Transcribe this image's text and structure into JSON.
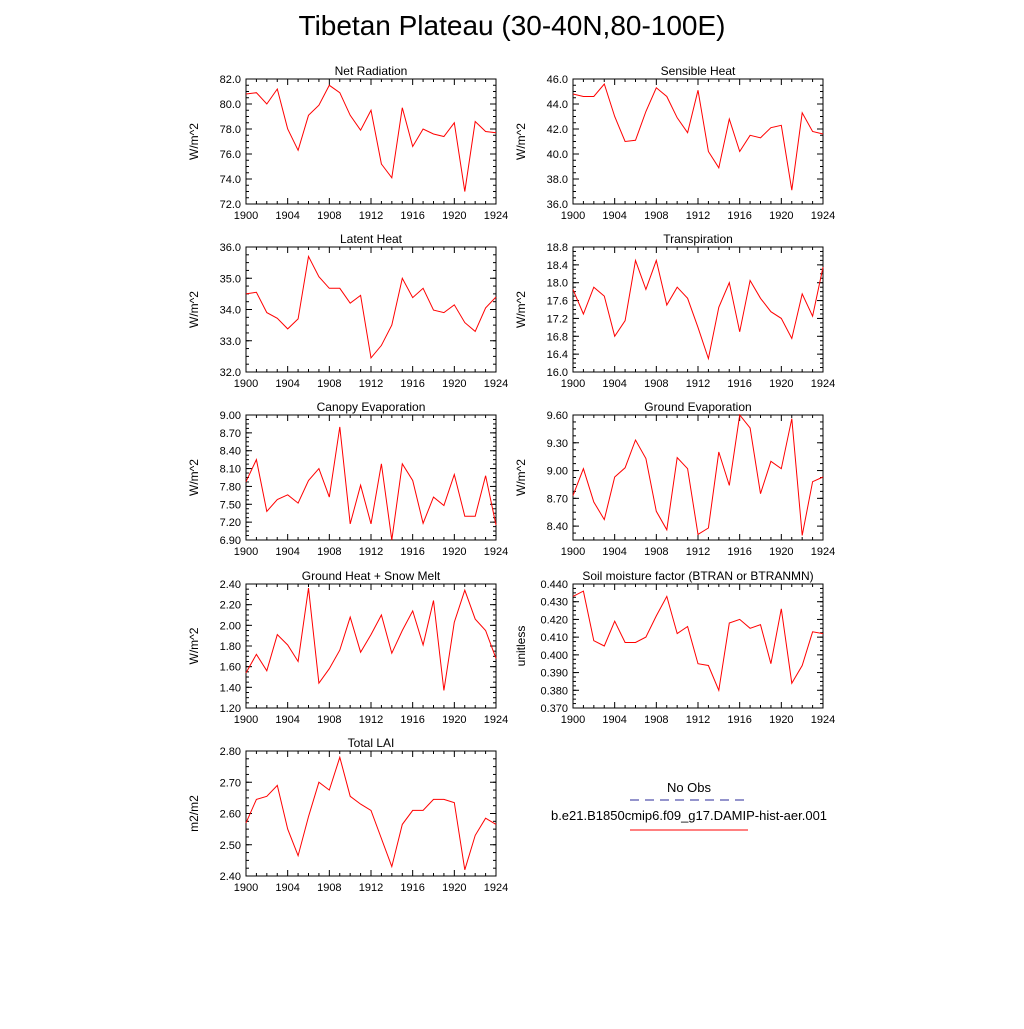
{
  "figure": {
    "title": "Tibetan Plateau (30-40N,80-100E)"
  },
  "legend": {
    "obs_label": "No Obs",
    "obs_color": "#2a2a9a",
    "model_label": "b.e21.B1850cmip6.f09_g17.DAMIP-hist-aer.001",
    "model_color": "#ff0000"
  },
  "chart_data": [
    {
      "type": "line",
      "title": "Net Radiation",
      "ylabel": "W/m^2",
      "xlim": [
        1900,
        1924
      ],
      "ylim": [
        72.0,
        82.0
      ],
      "xticks": [
        "1900",
        "1904",
        "1908",
        "1912",
        "1916",
        "1920",
        "1924"
      ],
      "yticks": [
        "72.0",
        "74.0",
        "76.0",
        "78.0",
        "80.0",
        "82.0"
      ],
      "series": [
        {
          "color": "#ff0000",
          "x": [
            1900,
            1901,
            1902,
            1903,
            1904,
            1905,
            1906,
            1907,
            1908,
            1909,
            1910,
            1911,
            1912,
            1913,
            1914,
            1915,
            1916,
            1917,
            1918,
            1919,
            1920,
            1921,
            1922,
            1923,
            1924
          ],
          "values": [
            80.8,
            80.9,
            80.0,
            81.2,
            78.0,
            76.3,
            79.1,
            79.9,
            81.5,
            80.9,
            79.1,
            77.9,
            79.5,
            75.2,
            74.1,
            79.7,
            76.6,
            78.0,
            77.6,
            77.4,
            78.5,
            73.0,
            78.6,
            77.8,
            77.7
          ]
        }
      ]
    },
    {
      "type": "line",
      "title": "Sensible Heat",
      "ylabel": "W/m^2",
      "xlim": [
        1900,
        1924
      ],
      "ylim": [
        36.0,
        46.0
      ],
      "xticks": [
        "1900",
        "1904",
        "1908",
        "1912",
        "1916",
        "1920",
        "1924"
      ],
      "yticks": [
        "36.0",
        "38.0",
        "40.0",
        "42.0",
        "44.0",
        "46.0"
      ],
      "series": [
        {
          "color": "#ff0000",
          "x": [
            1900,
            1901,
            1902,
            1903,
            1904,
            1905,
            1906,
            1907,
            1908,
            1909,
            1910,
            1911,
            1912,
            1913,
            1914,
            1915,
            1916,
            1917,
            1918,
            1919,
            1920,
            1921,
            1922,
            1923,
            1924
          ],
          "values": [
            44.8,
            44.6,
            44.6,
            45.6,
            43.0,
            41.0,
            41.1,
            43.4,
            45.3,
            44.6,
            42.9,
            41.7,
            45.1,
            40.2,
            38.9,
            42.8,
            40.2,
            41.5,
            41.3,
            42.1,
            42.3,
            37.1,
            43.3,
            41.8,
            41.6
          ]
        }
      ]
    },
    {
      "type": "line",
      "title": "Latent Heat",
      "ylabel": "W/m^2",
      "xlim": [
        1900,
        1924
      ],
      "ylim": [
        32.0,
        36.0
      ],
      "xticks": [
        "1900",
        "1904",
        "1908",
        "1912",
        "1916",
        "1920",
        "1924"
      ],
      "yticks": [
        "32.0",
        "33.0",
        "34.0",
        "35.0",
        "36.0"
      ],
      "series": [
        {
          "color": "#ff0000",
          "x": [
            1900,
            1901,
            1902,
            1903,
            1904,
            1905,
            1906,
            1907,
            1908,
            1909,
            1910,
            1911,
            1912,
            1913,
            1914,
            1915,
            1916,
            1917,
            1918,
            1919,
            1920,
            1921,
            1922,
            1923,
            1924
          ],
          "values": [
            34.5,
            34.55,
            33.9,
            33.72,
            33.38,
            33.7,
            35.7,
            35.05,
            34.68,
            34.68,
            34.2,
            34.45,
            32.45,
            32.85,
            33.5,
            35.0,
            34.38,
            34.68,
            33.98,
            33.9,
            34.15,
            33.58,
            33.3,
            34.05,
            34.4
          ]
        }
      ]
    },
    {
      "type": "line",
      "title": "Transpiration",
      "ylabel": "W/m^2",
      "xlim": [
        1900,
        1924
      ],
      "ylim": [
        16.0,
        18.8
      ],
      "xticks": [
        "1900",
        "1904",
        "1908",
        "1912",
        "1916",
        "1920",
        "1924"
      ],
      "yticks": [
        "16.0",
        "16.4",
        "16.8",
        "17.2",
        "17.6",
        "18.0",
        "18.4",
        "18.8"
      ],
      "series": [
        {
          "color": "#ff0000",
          "x": [
            1900,
            1901,
            1902,
            1903,
            1904,
            1905,
            1906,
            1907,
            1908,
            1909,
            1910,
            1911,
            1912,
            1913,
            1914,
            1915,
            1916,
            1917,
            1918,
            1919,
            1920,
            1921,
            1922,
            1923,
            1924
          ],
          "values": [
            17.85,
            17.3,
            17.9,
            17.7,
            16.8,
            17.15,
            18.5,
            17.85,
            18.5,
            17.5,
            17.9,
            17.65,
            17.0,
            16.3,
            17.45,
            18.0,
            16.9,
            18.05,
            17.65,
            17.35,
            17.2,
            16.75,
            17.75,
            17.25,
            18.35
          ]
        }
      ]
    },
    {
      "type": "line",
      "title": "Canopy Evaporation",
      "ylabel": "W/m^2",
      "xlim": [
        1900,
        1924
      ],
      "ylim": [
        6.9,
        9.0
      ],
      "xticks": [
        "1900",
        "1904",
        "1908",
        "1912",
        "1916",
        "1920",
        "1924"
      ],
      "yticks": [
        "6.90",
        "7.20",
        "7.50",
        "7.80",
        "8.10",
        "8.40",
        "8.70",
        "9.00"
      ],
      "series": [
        {
          "color": "#ff0000",
          "x": [
            1900,
            1901,
            1902,
            1903,
            1904,
            1905,
            1906,
            1907,
            1908,
            1909,
            1910,
            1911,
            1912,
            1913,
            1914,
            1915,
            1916,
            1917,
            1918,
            1919,
            1920,
            1921,
            1922,
            1923,
            1924
          ],
          "values": [
            7.88,
            8.25,
            7.38,
            7.58,
            7.66,
            7.52,
            7.9,
            8.1,
            7.62,
            8.8,
            7.17,
            7.82,
            7.17,
            8.18,
            6.9,
            8.18,
            7.9,
            7.18,
            7.62,
            7.48,
            8.0,
            7.3,
            7.3,
            7.98,
            7.15
          ]
        }
      ]
    },
    {
      "type": "line",
      "title": "Ground Evaporation",
      "ylabel": "W/m^2",
      "xlim": [
        1900,
        1924
      ],
      "ylim": [
        8.25,
        9.6
      ],
      "xticks": [
        "1900",
        "1904",
        "1908",
        "1912",
        "1916",
        "1920",
        "1924"
      ],
      "yticks": [
        "8.40",
        "8.70",
        "9.00",
        "9.30",
        "9.60"
      ],
      "series": [
        {
          "color": "#ff0000",
          "x": [
            1900,
            1901,
            1902,
            1903,
            1904,
            1905,
            1906,
            1907,
            1908,
            1909,
            1910,
            1911,
            1912,
            1913,
            1914,
            1915,
            1916,
            1917,
            1918,
            1919,
            1920,
            1921,
            1922,
            1923,
            1924
          ],
          "values": [
            8.73,
            9.02,
            8.66,
            8.47,
            8.93,
            9.03,
            9.33,
            9.13,
            8.56,
            8.36,
            9.14,
            9.02,
            8.31,
            8.38,
            9.2,
            8.84,
            9.6,
            9.46,
            8.75,
            9.1,
            9.02,
            9.56,
            8.3,
            8.88,
            8.93
          ]
        }
      ]
    },
    {
      "type": "line",
      "title": "Ground Heat + Snow Melt",
      "ylabel": "W/m^2",
      "xlim": [
        1900,
        1924
      ],
      "ylim": [
        1.2,
        2.4
      ],
      "xticks": [
        "1900",
        "1904",
        "1908",
        "1912",
        "1916",
        "1920",
        "1924"
      ],
      "yticks": [
        "1.20",
        "1.40",
        "1.60",
        "1.80",
        "2.00",
        "2.20",
        "2.40"
      ],
      "series": [
        {
          "color": "#ff0000",
          "x": [
            1900,
            1901,
            1902,
            1903,
            1904,
            1905,
            1906,
            1907,
            1908,
            1909,
            1910,
            1911,
            1912,
            1913,
            1914,
            1915,
            1916,
            1917,
            1918,
            1919,
            1920,
            1921,
            1922,
            1923,
            1924
          ],
          "values": [
            1.54,
            1.72,
            1.56,
            1.91,
            1.81,
            1.65,
            2.36,
            1.44,
            1.58,
            1.76,
            2.08,
            1.74,
            1.91,
            2.1,
            1.73,
            1.95,
            2.14,
            1.81,
            2.24,
            1.37,
            2.03,
            2.34,
            2.06,
            1.95,
            1.68
          ]
        }
      ]
    },
    {
      "type": "line",
      "title": "Soil moisture factor (BTRAN or BTRANMN)",
      "ylabel": "unitless",
      "xlim": [
        1900,
        1924
      ],
      "ylim": [
        0.37,
        0.44
      ],
      "xticks": [
        "1900",
        "1904",
        "1908",
        "1912",
        "1916",
        "1920",
        "1924"
      ],
      "yticks": [
        "0.370",
        "0.380",
        "0.390",
        "0.400",
        "0.410",
        "0.420",
        "0.430",
        "0.440"
      ],
      "series": [
        {
          "color": "#ff0000",
          "x": [
            1900,
            1901,
            1902,
            1903,
            1904,
            1905,
            1906,
            1907,
            1908,
            1909,
            1910,
            1911,
            1912,
            1913,
            1914,
            1915,
            1916,
            1917,
            1918,
            1919,
            1920,
            1921,
            1922,
            1923,
            1924
          ],
          "values": [
            0.433,
            0.436,
            0.408,
            0.405,
            0.419,
            0.407,
            0.407,
            0.41,
            0.422,
            0.433,
            0.412,
            0.416,
            0.395,
            0.394,
            0.38,
            0.418,
            0.42,
            0.415,
            0.417,
            0.395,
            0.426,
            0.384,
            0.394,
            0.413,
            0.412
          ]
        }
      ]
    },
    {
      "type": "line",
      "title": "Total LAI",
      "ylabel": "m2/m2",
      "xlim": [
        1900,
        1924
      ],
      "ylim": [
        2.4,
        2.8
      ],
      "xticks": [
        "1900",
        "1904",
        "1908",
        "1912",
        "1916",
        "1920",
        "1924"
      ],
      "yticks": [
        "2.40",
        "2.50",
        "2.60",
        "2.70",
        "2.80"
      ],
      "series": [
        {
          "color": "#ff0000",
          "x": [
            1900,
            1901,
            1902,
            1903,
            1904,
            1905,
            1906,
            1907,
            1908,
            1909,
            1910,
            1911,
            1912,
            1913,
            1914,
            1915,
            1916,
            1917,
            1918,
            1919,
            1920,
            1921,
            1922,
            1923,
            1924
          ],
          "values": [
            2.57,
            2.645,
            2.655,
            2.69,
            2.55,
            2.465,
            2.59,
            2.7,
            2.675,
            2.78,
            2.655,
            2.63,
            2.61,
            2.52,
            2.43,
            2.565,
            2.61,
            2.61,
            2.645,
            2.645,
            2.635,
            2.42,
            2.53,
            2.585,
            2.565
          ]
        }
      ]
    }
  ]
}
